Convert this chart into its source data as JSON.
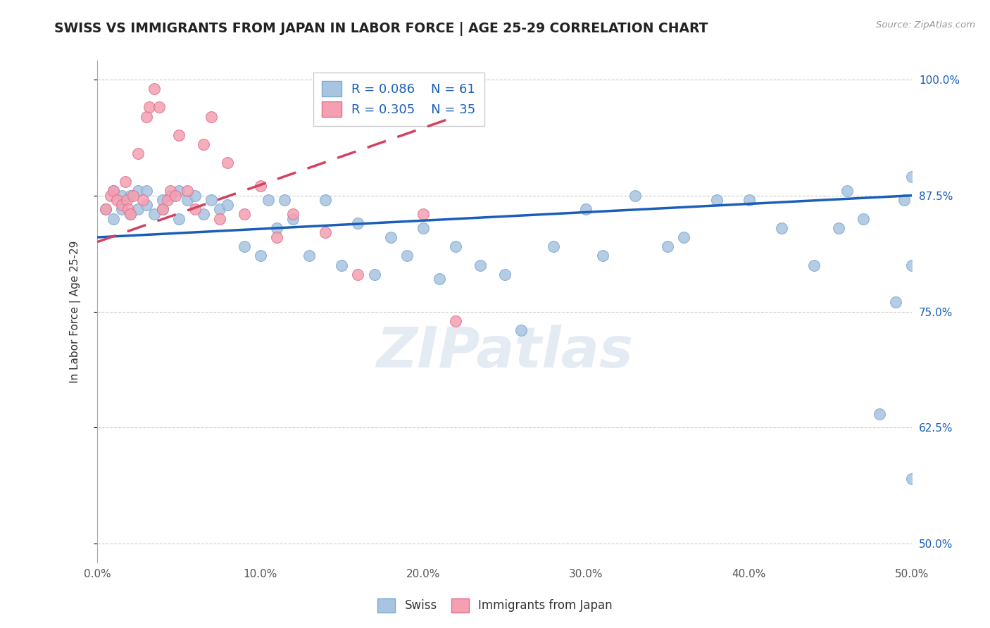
{
  "title": "SWISS VS IMMIGRANTS FROM JAPAN IN LABOR FORCE | AGE 25-29 CORRELATION CHART",
  "source": "Source: ZipAtlas.com",
  "ylabel": "In Labor Force | Age 25-29",
  "xlim": [
    0.0,
    0.5
  ],
  "ylim": [
    0.48,
    1.02
  ],
  "yticks": [
    0.5,
    0.625,
    0.75,
    0.875,
    1.0
  ],
  "ytick_labels": [
    "50.0%",
    "62.5%",
    "75.0%",
    "87.5%",
    "100.0%"
  ],
  "xticks": [
    0.0,
    0.1,
    0.2,
    0.3,
    0.4,
    0.5
  ],
  "xtick_labels": [
    "0.0%",
    "10.0%",
    "20.0%",
    "30.0%",
    "40.0%",
    "50.0%"
  ],
  "blue_R": "0.086",
  "blue_N": "61",
  "pink_R": "0.305",
  "pink_N": "35",
  "blue_color": "#a8c4e0",
  "pink_color": "#f4a0b0",
  "blue_edge_color": "#7aaad0",
  "pink_edge_color": "#e07090",
  "blue_line_color": "#1a5eb8",
  "pink_line_color": "#d44060",
  "watermark": "ZIPatlas",
  "blue_scatter_x": [
    0.005,
    0.01,
    0.01,
    0.015,
    0.015,
    0.02,
    0.02,
    0.025,
    0.025,
    0.03,
    0.03,
    0.035,
    0.04,
    0.04,
    0.045,
    0.05,
    0.05,
    0.055,
    0.06,
    0.065,
    0.07,
    0.075,
    0.08,
    0.09,
    0.1,
    0.105,
    0.11,
    0.115,
    0.12,
    0.13,
    0.14,
    0.15,
    0.16,
    0.17,
    0.18,
    0.19,
    0.2,
    0.21,
    0.22,
    0.235,
    0.25,
    0.26,
    0.28,
    0.3,
    0.31,
    0.33,
    0.35,
    0.36,
    0.38,
    0.4,
    0.42,
    0.44,
    0.455,
    0.46,
    0.47,
    0.48,
    0.49,
    0.495,
    0.5,
    0.5,
    0.5
  ],
  "blue_scatter_y": [
    0.86,
    0.85,
    0.88,
    0.875,
    0.86,
    0.855,
    0.875,
    0.86,
    0.88,
    0.865,
    0.88,
    0.855,
    0.87,
    0.86,
    0.875,
    0.85,
    0.88,
    0.87,
    0.875,
    0.855,
    0.87,
    0.86,
    0.865,
    0.82,
    0.81,
    0.87,
    0.84,
    0.87,
    0.85,
    0.81,
    0.87,
    0.8,
    0.845,
    0.79,
    0.83,
    0.81,
    0.84,
    0.785,
    0.82,
    0.8,
    0.79,
    0.73,
    0.82,
    0.86,
    0.81,
    0.875,
    0.82,
    0.83,
    0.87,
    0.87,
    0.84,
    0.8,
    0.84,
    0.88,
    0.85,
    0.64,
    0.76,
    0.87,
    0.895,
    0.8,
    0.57
  ],
  "pink_scatter_x": [
    0.005,
    0.008,
    0.01,
    0.012,
    0.015,
    0.017,
    0.018,
    0.019,
    0.02,
    0.022,
    0.025,
    0.028,
    0.03,
    0.032,
    0.035,
    0.038,
    0.04,
    0.043,
    0.045,
    0.048,
    0.05,
    0.055,
    0.06,
    0.065,
    0.07,
    0.075,
    0.08,
    0.09,
    0.1,
    0.11,
    0.12,
    0.14,
    0.16,
    0.2,
    0.22
  ],
  "pink_scatter_y": [
    0.86,
    0.875,
    0.88,
    0.87,
    0.865,
    0.89,
    0.87,
    0.86,
    0.855,
    0.875,
    0.92,
    0.87,
    0.96,
    0.97,
    0.99,
    0.97,
    0.86,
    0.87,
    0.88,
    0.875,
    0.94,
    0.88,
    0.86,
    0.93,
    0.96,
    0.85,
    0.91,
    0.855,
    0.885,
    0.83,
    0.855,
    0.835,
    0.79,
    0.855,
    0.74
  ],
  "blue_line_x": [
    0.0,
    0.5
  ],
  "blue_line_y": [
    0.83,
    0.875
  ],
  "pink_line_x": [
    0.0,
    0.22
  ],
  "pink_line_y": [
    0.825,
    0.96
  ]
}
